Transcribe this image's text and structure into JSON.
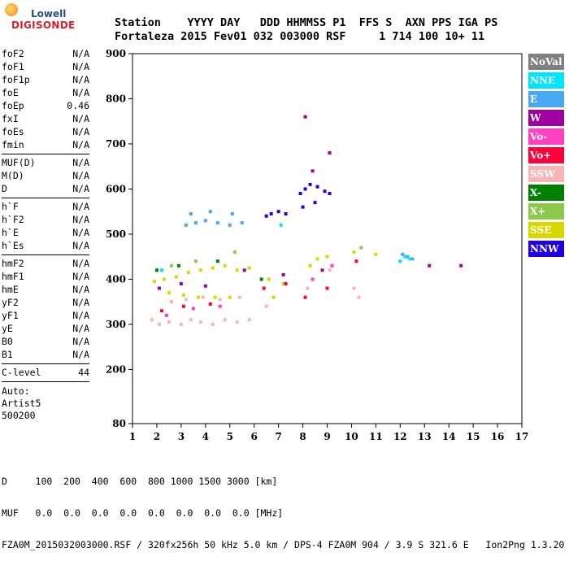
{
  "logo": {
    "line1": "Lowell",
    "line2": "DIGISONDE"
  },
  "header": {
    "labels_line": "Station    YYYY DAY   DDD HHMMSS P1  FFS S  AXN PPS IGA PS",
    "values_line": "Fortaleza 2015 Fev01 032 003000 RSF     1 714 100 10+ 11"
  },
  "params": {
    "group1": [
      {
        "name": "foF2",
        "value": "N/A"
      },
      {
        "name": "foF1",
        "value": "N/A"
      },
      {
        "name": "foF1p",
        "value": "N/A"
      },
      {
        "name": "foE",
        "value": "N/A"
      },
      {
        "name": "foEp",
        "value": "0.46"
      },
      {
        "name": "fxI",
        "value": "N/A"
      },
      {
        "name": "foEs",
        "value": "N/A"
      },
      {
        "name": "fmin",
        "value": "N/A"
      }
    ],
    "group2": [
      {
        "name": "MUF(D)",
        "value": "N/A"
      },
      {
        "name": "M(D)",
        "value": "N/A"
      },
      {
        "name": "D",
        "value": "N/A"
      }
    ],
    "group3": [
      {
        "name": "h`F",
        "value": "N/A"
      },
      {
        "name": "h`F2",
        "value": "N/A"
      },
      {
        "name": "h`E",
        "value": "N/A"
      },
      {
        "name": "h`Es",
        "value": "N/A"
      }
    ],
    "group4": [
      {
        "name": "hmF2",
        "value": "N/A"
      },
      {
        "name": "hmF1",
        "value": "N/A"
      },
      {
        "name": "hmE",
        "value": "N/A"
      },
      {
        "name": "yF2",
        "value": "N/A"
      },
      {
        "name": "yF1",
        "value": "N/A"
      },
      {
        "name": "yE",
        "value": "N/A"
      },
      {
        "name": "B0",
        "value": "N/A"
      },
      {
        "name": "B1",
        "value": "N/A"
      }
    ],
    "clevel": {
      "name": "C-level",
      "value": "44"
    },
    "auto": {
      "line1": "Auto:",
      "line2": "Artist5",
      "line3": "500200"
    }
  },
  "legend": [
    {
      "label": "NoVal",
      "color": "#808080"
    },
    {
      "label": "NNE",
      "color": "#00e5ff"
    },
    {
      "label": "E",
      "color": "#4aa8f0"
    },
    {
      "label": "W",
      "color": "#a000a0"
    },
    {
      "label": "Vo-",
      "color": "#ff40c0"
    },
    {
      "label": "Vo+",
      "color": "#ff0038"
    },
    {
      "label": "SSW",
      "color": "#f6b6b6"
    },
    {
      "label": "X-",
      "color": "#008000"
    },
    {
      "label": "X+",
      "color": "#8cc84a"
    },
    {
      "label": "SSE",
      "color": "#d8d800"
    },
    {
      "label": "NNW",
      "color": "#2000e0"
    }
  ],
  "chart_data": {
    "type": "scatter",
    "xlim": [
      1,
      17
    ],
    "ylim": [
      80,
      900
    ],
    "x_ticks": [
      1,
      2,
      3,
      4,
      5,
      6,
      7,
      8,
      9,
      10,
      11,
      12,
      13,
      14,
      15,
      16,
      17
    ],
    "y_ticks": [
      80,
      200,
      300,
      400,
      500,
      600,
      700,
      800,
      900
    ],
    "grid": false,
    "legend_position": "right",
    "series": [
      {
        "name": "SSW",
        "color": "#f6b6b6",
        "points": [
          [
            1.8,
            310
          ],
          [
            2.1,
            300
          ],
          [
            2.5,
            305
          ],
          [
            3.0,
            300
          ],
          [
            3.4,
            310
          ],
          [
            3.8,
            305
          ],
          [
            4.3,
            300
          ],
          [
            4.8,
            310
          ],
          [
            5.3,
            305
          ],
          [
            5.8,
            310
          ],
          [
            2.6,
            350
          ],
          [
            3.2,
            355
          ],
          [
            3.9,
            360
          ],
          [
            4.6,
            355
          ],
          [
            5.4,
            360
          ],
          [
            6.5,
            340
          ],
          [
            8.2,
            380
          ],
          [
            9.1,
            420
          ],
          [
            10.1,
            380
          ],
          [
            10.3,
            360
          ]
        ]
      },
      {
        "name": "SSE",
        "color": "#d8d800",
        "points": [
          [
            1.9,
            395
          ],
          [
            2.3,
            400
          ],
          [
            2.8,
            405
          ],
          [
            3.3,
            415
          ],
          [
            3.8,
            420
          ],
          [
            4.3,
            425
          ],
          [
            4.8,
            430
          ],
          [
            5.3,
            420
          ],
          [
            5.8,
            425
          ],
          [
            2.5,
            370
          ],
          [
            3.1,
            365
          ],
          [
            3.7,
            360
          ],
          [
            4.4,
            360
          ],
          [
            5.0,
            360
          ],
          [
            6.6,
            400
          ],
          [
            6.8,
            360
          ],
          [
            7.2,
            390
          ],
          [
            8.3,
            430
          ],
          [
            8.6,
            445
          ],
          [
            9.0,
            450
          ],
          [
            10.1,
            460
          ],
          [
            11.0,
            455
          ]
        ]
      },
      {
        "name": "NNW",
        "color": "#2000e0",
        "points": [
          [
            6.5,
            540
          ],
          [
            6.7,
            545
          ],
          [
            7.0,
            550
          ],
          [
            7.3,
            545
          ],
          [
            7.9,
            590
          ],
          [
            8.1,
            600
          ],
          [
            8.3,
            610
          ],
          [
            8.6,
            605
          ],
          [
            8.9,
            595
          ],
          [
            9.1,
            590
          ],
          [
            8.0,
            560
          ],
          [
            8.5,
            570
          ]
        ]
      },
      {
        "name": "E",
        "color": "#4aa8f0",
        "points": [
          [
            3.2,
            520
          ],
          [
            3.6,
            525
          ],
          [
            4.0,
            530
          ],
          [
            4.5,
            525
          ],
          [
            5.0,
            520
          ],
          [
            5.5,
            525
          ],
          [
            3.4,
            545
          ],
          [
            4.2,
            550
          ],
          [
            5.1,
            545
          ],
          [
            12.1,
            455
          ],
          [
            12.3,
            450
          ],
          [
            12.5,
            445
          ]
        ]
      },
      {
        "name": "NNE",
        "color": "#00e5ff",
        "points": [
          [
            12.0,
            440
          ],
          [
            12.2,
            450
          ],
          [
            12.4,
            445
          ],
          [
            2.2,
            420
          ],
          [
            7.1,
            520
          ]
        ]
      },
      {
        "name": "Vo+",
        "color": "#ff0038",
        "points": [
          [
            2.2,
            330
          ],
          [
            3.1,
            340
          ],
          [
            4.2,
            345
          ],
          [
            6.4,
            380
          ],
          [
            7.3,
            390
          ],
          [
            8.1,
            360
          ],
          [
            9.0,
            380
          ],
          [
            10.2,
            440
          ]
        ]
      },
      {
        "name": "Vo-",
        "color": "#ff40c0",
        "points": [
          [
            2.4,
            320
          ],
          [
            3.5,
            335
          ],
          [
            4.6,
            340
          ],
          [
            8.4,
            400
          ],
          [
            9.2,
            430
          ]
        ]
      },
      {
        "name": "W",
        "color": "#a000a0",
        "points": [
          [
            2.1,
            380
          ],
          [
            3.0,
            390
          ],
          [
            4.0,
            385
          ],
          [
            5.6,
            420
          ],
          [
            7.2,
            410
          ],
          [
            8.8,
            420
          ],
          [
            9.1,
            680
          ],
          [
            8.1,
            760
          ],
          [
            8.4,
            640
          ],
          [
            13.2,
            430
          ],
          [
            14.5,
            430
          ]
        ]
      },
      {
        "name": "X-",
        "color": "#008000",
        "points": [
          [
            2.0,
            420
          ],
          [
            2.9,
            430
          ],
          [
            4.5,
            440
          ],
          [
            6.3,
            400
          ]
        ]
      },
      {
        "name": "X+",
        "color": "#8cc84a",
        "points": [
          [
            2.6,
            430
          ],
          [
            3.6,
            440
          ],
          [
            5.2,
            460
          ],
          [
            10.4,
            470
          ]
        ]
      }
    ]
  },
  "footer": {
    "line1": "D     100  200  400  600  800 1000 1500 3000 [km]",
    "line2": "MUF   0.0  0.0  0.0  0.0  0.0  0.0  0.0  0.0 [MHz]",
    "line3": "FZA0M_2015032003000.RSF / 320fx256h 50 kHz 5.0 km / DPS-4 FZA0M 904 / 3.9 S 321.6 E   Ion2Png 1.3.20"
  }
}
